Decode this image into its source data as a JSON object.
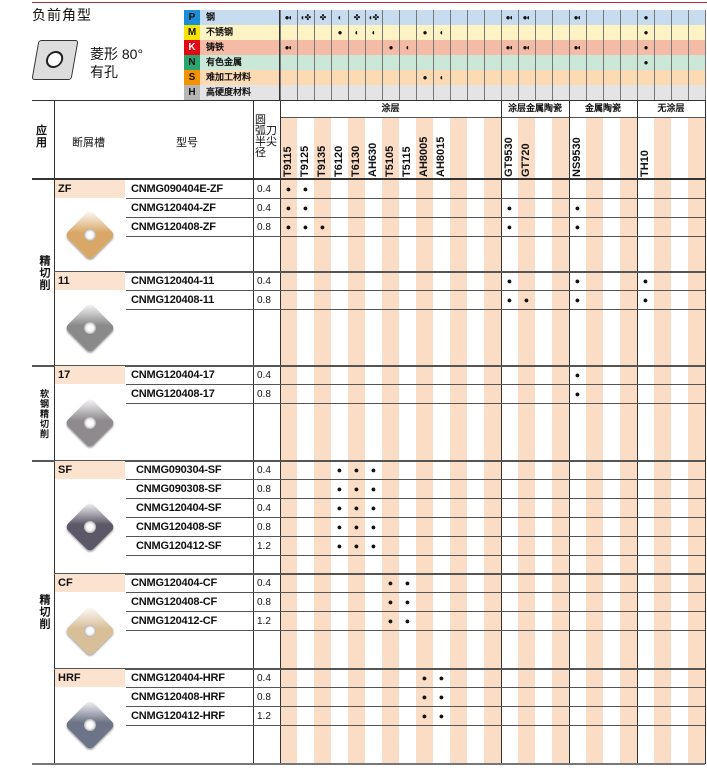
{
  "title": "负前角型",
  "shape": {
    "line1": "菱形 80°",
    "line2": "有孔",
    "icon": "rhombus-80-with-hole-icon"
  },
  "materials": [
    {
      "code": "P",
      "label": "钢",
      "row_color": "#c8dcf0",
      "code_color": "#1a8fd8",
      "marks": {
        "T9115": "●◐",
        "T9125": "◐✤",
        "T9135": "✤",
        "T6120": "◐",
        "T6130": "✤",
        "AH630": "◐✤",
        "GT9530": "●◐",
        "GT720": "●◐",
        "NS9530": "●◐",
        "TH10": "●"
      }
    },
    {
      "code": "M",
      "label": "不锈钢",
      "row_color": "#fdf3c4",
      "code_color": "#f5e400",
      "marks": {
        "T6120": "●",
        "T6130": "◐",
        "AH630": "◐",
        "AH8005": "●",
        "AH8015": "◐",
        "TH10": "●"
      }
    },
    {
      "code": "K",
      "label": "铸铁",
      "row_color": "#f4bca6",
      "code_color": "#e30613",
      "marks": {
        "T9115": "●◐",
        "T5105": "●",
        "T5115": "◐",
        "GT9530": "●◐",
        "GT720": "●◐",
        "NS9530": "●◐",
        "TH10": "●"
      }
    },
    {
      "code": "N",
      "label": "有色金属",
      "row_color": "#cbe7d8",
      "code_color": "#2aa56f",
      "marks": {
        "TH10": "●"
      }
    },
    {
      "code": "S",
      "label": "难加工材料",
      "row_color": "#fcdab4",
      "code_color": "#f39200",
      "marks": {
        "AH8005": "●",
        "AH8015": "◐"
      }
    },
    {
      "code": "H",
      "label": "高硬度材料",
      "row_color": "#e4e4e4",
      "code_color": "#b5b5b5",
      "marks": {}
    }
  ],
  "header": {
    "application": "应用",
    "chipbreaker": "断屑槽",
    "model": "型号",
    "radius_lines": [
      "圆",
      "弧刀",
      "半尖",
      "径"
    ]
  },
  "grade_groups": [
    {
      "label": "涂层",
      "span": 13
    },
    {
      "label": "涂层金属陶瓷",
      "span": 4
    },
    {
      "label": "金属陶瓷",
      "span": 4
    },
    {
      "label": "无涂层",
      "span": 4
    }
  ],
  "grades": [
    "T9115",
    "T9125",
    "T9135",
    "T6120",
    "T6130",
    "AH630",
    "T5105",
    "T5115",
    "AH8005",
    "AH8015",
    "",
    "",
    "",
    "GT9530",
    "GT720",
    "",
    "",
    "NS9530",
    "",
    "",
    "",
    "TH10",
    "",
    "",
    ""
  ],
  "applications": [
    "精切削",
    "软钢精切削",
    "精切削"
  ],
  "stripe_color": "#fbdcc4",
  "groups": [
    {
      "chipbreaker": "ZF",
      "insert_color": "#d9a868",
      "rows": [
        {
          "model": "CNMG090404E-ZF",
          "radius": "0.4",
          "marks": [
            "T9115",
            "T9125"
          ]
        },
        {
          "model": "CNMG120404-ZF",
          "radius": "0.4",
          "marks": [
            "T9115",
            "T9125",
            "GT9530",
            "NS9530"
          ]
        },
        {
          "model": "CNMG120408-ZF",
          "radius": "0.8",
          "marks": [
            "T9115",
            "T9125",
            "T9135",
            "GT9530",
            "NS9530"
          ]
        }
      ]
    },
    {
      "chipbreaker": "11",
      "insert_color": "#8a8a8a",
      "rows": [
        {
          "model": "CNMG120404-11",
          "radius": "0.4",
          "marks": [
            "GT9530",
            "NS9530",
            "TH10"
          ]
        },
        {
          "model": "CNMG120408-11",
          "radius": "0.8",
          "marks": [
            "GT9530",
            "GT720",
            "NS9530",
            "TH10"
          ]
        }
      ]
    },
    {
      "chipbreaker": "17",
      "insert_color": "#8e8a8e",
      "rows": [
        {
          "model": "CNMG120404-17",
          "radius": "0.4",
          "marks": [
            "NS9530"
          ]
        },
        {
          "model": "CNMG120408-17",
          "radius": "0.8",
          "marks": [
            "NS9530"
          ]
        }
      ]
    },
    {
      "chipbreaker": "SF",
      "insert_color": "#5d5868",
      "rows": [
        {
          "model": "CNMG090304-SF",
          "radius": "0.4",
          "marks": [
            "T6120",
            "T6130",
            "AH630"
          ]
        },
        {
          "model": "CNMG090308-SF",
          "radius": "0.8",
          "marks": [
            "T6120",
            "T6130",
            "AH630"
          ]
        },
        {
          "model": "CNMG120404-SF",
          "radius": "0.4",
          "marks": [
            "T6120",
            "T6130",
            "AH630"
          ]
        },
        {
          "model": "CNMG120408-SF",
          "radius": "0.8",
          "marks": [
            "T6120",
            "T6130",
            "AH630"
          ]
        },
        {
          "model": "CNMG120412-SF",
          "radius": "1.2",
          "marks": [
            "T6120",
            "T6130",
            "AH630"
          ]
        }
      ]
    },
    {
      "chipbreaker": "CF",
      "insert_color": "#d8bf98",
      "rows": [
        {
          "model": "CNMG120404-CF",
          "radius": "0.4",
          "marks": [
            "T5105",
            "T5115"
          ]
        },
        {
          "model": "CNMG120408-CF",
          "radius": "0.8",
          "marks": [
            "T5105",
            "T5115"
          ]
        },
        {
          "model": "CNMG120412-CF",
          "radius": "1.2",
          "marks": [
            "T5105",
            "T5115"
          ]
        }
      ]
    },
    {
      "chipbreaker": "HRF",
      "insert_color": "#6e7488",
      "rows": [
        {
          "model": "CNMG120404-HRF",
          "radius": "0.4",
          "marks": [
            "AH8005",
            "AH8015"
          ]
        },
        {
          "model": "CNMG120408-HRF",
          "radius": "0.8",
          "marks": [
            "AH8005",
            "AH8015"
          ]
        },
        {
          "model": "CNMG120412-HRF",
          "radius": "1.2",
          "marks": [
            "AH8005",
            "AH8015"
          ]
        }
      ]
    }
  ]
}
